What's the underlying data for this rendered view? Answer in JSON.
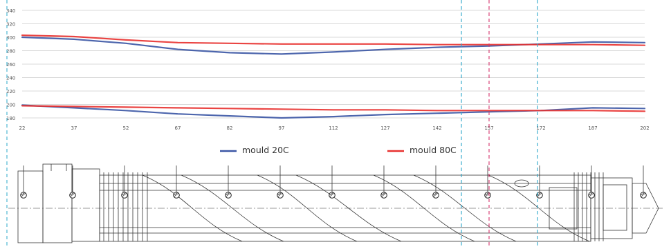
{
  "chart_data": {
    "type": "line",
    "x": [
      22,
      37,
      52,
      67,
      82,
      97,
      112,
      127,
      142,
      157,
      172,
      187,
      202
    ],
    "x_ticks": [
      "22",
      "37",
      "52",
      "67",
      "82",
      "97",
      "112",
      "127",
      "142",
      "157",
      "172",
      "187",
      "202"
    ],
    "y_ticks": [
      "180",
      "200",
      "220",
      "240",
      "260",
      "280",
      "300",
      "320",
      "340"
    ],
    "ylim": [
      180,
      340
    ],
    "xlim": [
      22,
      202
    ],
    "grid": "horizontal",
    "legend_position": "bottom",
    "series": [
      {
        "name": "mould 20C",
        "color": "#3a55a4",
        "values": [
          300,
          297,
          291,
          282,
          277,
          275,
          278,
          282,
          285,
          287,
          290,
          293,
          292
        ]
      },
      {
        "name": "mould 80C",
        "color": "#e8302e",
        "values": [
          303,
          301,
          296,
          292,
          291,
          290,
          290,
          290,
          289,
          289,
          289,
          289,
          288
        ]
      },
      {
        "name": "mould 20C",
        "color": "#3a55a4",
        "values": [
          199,
          195,
          191,
          186,
          183,
          180,
          182,
          185,
          187,
          189,
          191,
          195,
          194
        ]
      },
      {
        "name": "mould 80C",
        "color": "#e8302e",
        "values": [
          198,
          197,
          196,
          195,
          194,
          193,
          192,
          192,
          191,
          191,
          191,
          191,
          190
        ]
      }
    ],
    "legend": [
      {
        "label": "mould 20C",
        "color": "#3a55a4"
      },
      {
        "label": "mould 80C",
        "color": "#e8302e"
      }
    ],
    "reference_lines_x": [
      {
        "value": 149,
        "color": "#2aa7c9",
        "style": "dashed"
      },
      {
        "value": 157,
        "color": "#d6336c",
        "style": "dashed"
      },
      {
        "value": 171,
        "color": "#2aa7c9",
        "style": "dashed"
      }
    ]
  },
  "drawing": {
    "marker_count": 13,
    "axis_reference_line": {
      "color": "#2aa7c9",
      "style": "dashed",
      "position": "left"
    }
  }
}
